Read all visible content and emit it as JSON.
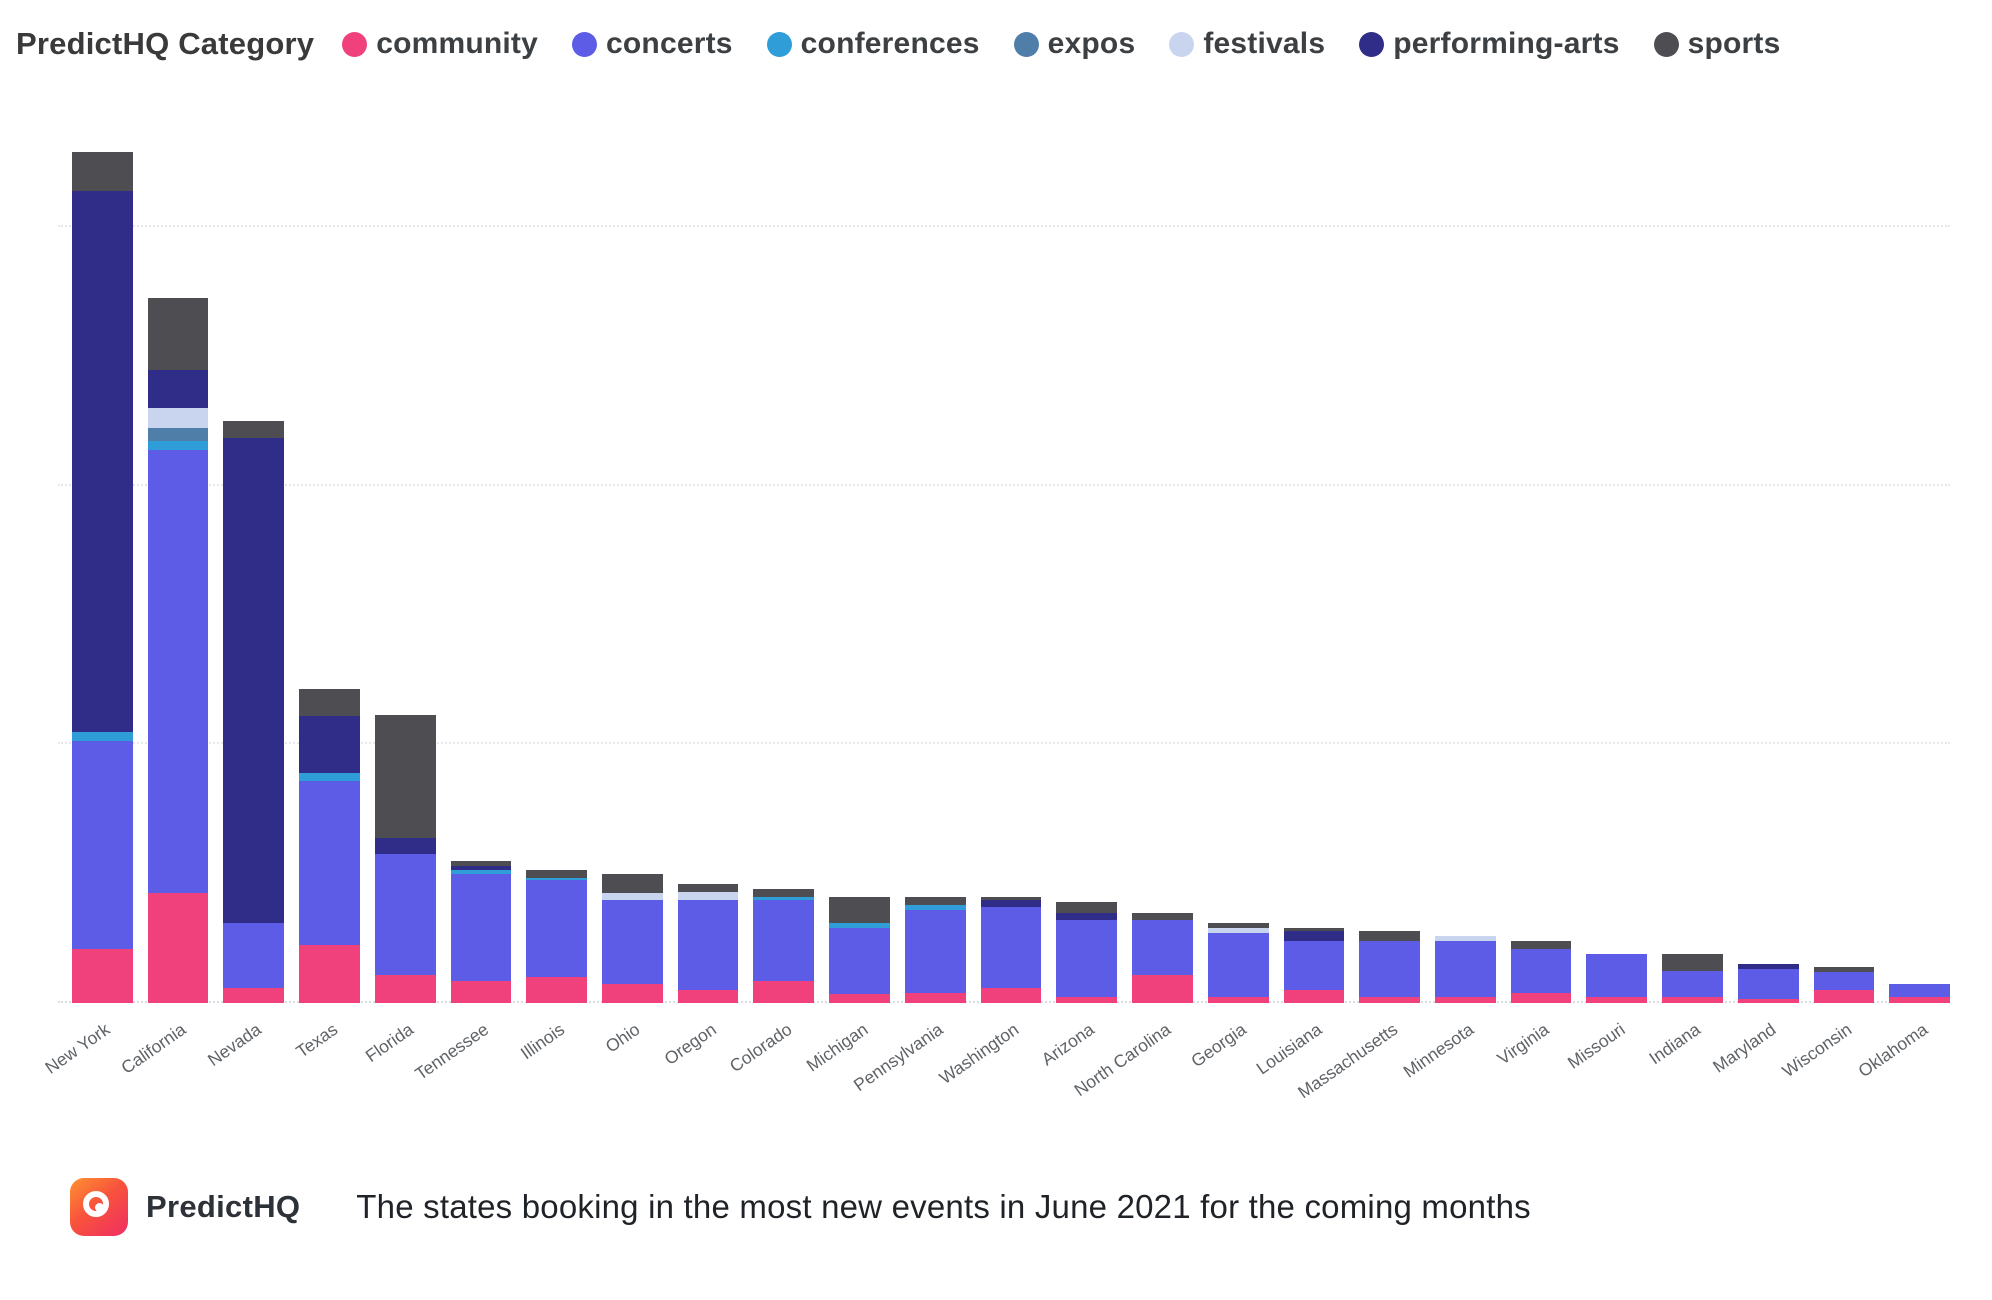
{
  "legend": {
    "title": "PredictHQ Category",
    "items": [
      {
        "label": "community",
        "color": "#F0417D"
      },
      {
        "label": "concerts",
        "color": "#5C5CE6"
      },
      {
        "label": "conferences",
        "color": "#2F9DD8"
      },
      {
        "label": "expos",
        "color": "#4F7EA9"
      },
      {
        "label": "festivals",
        "color": "#C9D5EE"
      },
      {
        "label": "performing-arts",
        "color": "#2F2D87"
      },
      {
        "label": "sports",
        "color": "#4E4E52"
      }
    ]
  },
  "chart_data": {
    "type": "bar",
    "stacked": true,
    "title": "The states booking in the most new events in June 2021 for the coming months",
    "xlabel": "",
    "ylabel": "",
    "ylim": [
      0,
      3500
    ],
    "grid": "horizontal-dotted",
    "gridline_values": [
      1000,
      2000,
      3000
    ],
    "legend_position": "top",
    "categories": [
      "New York",
      "California",
      "Nevada",
      "Texas",
      "Florida",
      "Tennessee",
      "Illinois",
      "Ohio",
      "Oregon",
      "Colorado",
      "Michigan",
      "Pennsylvania",
      "Washington",
      "Arizona",
      "North Carolina",
      "Georgia",
      "Louisiana",
      "Massachusetts",
      "Minnesota",
      "Virginia",
      "Missouri",
      "Indiana",
      "Maryland",
      "Wisconsin",
      "Oklahoma"
    ],
    "series": [
      {
        "name": "community",
        "color": "#F0417D",
        "values": [
          210,
          425,
          60,
          225,
          110,
          85,
          100,
          75,
          50,
          85,
          35,
          40,
          60,
          25,
          110,
          25,
          50,
          25,
          25,
          40,
          25,
          25,
          15,
          50,
          25
        ]
      },
      {
        "name": "concerts",
        "color": "#5C5CE6",
        "values": [
          805,
          1715,
          250,
          635,
          465,
          415,
          375,
          325,
          350,
          315,
          255,
          320,
          310,
          295,
          210,
          245,
          190,
          215,
          215,
          170,
          165,
          100,
          115,
          70,
          50
        ]
      },
      {
        "name": "conferences",
        "color": "#2F9DD8",
        "values": [
          35,
          35,
          0,
          30,
          0,
          15,
          10,
          0,
          0,
          10,
          20,
          20,
          0,
          0,
          0,
          0,
          0,
          0,
          0,
          0,
          0,
          0,
          0,
          0,
          0
        ]
      },
      {
        "name": "expos",
        "color": "#4F7EA9",
        "values": [
          0,
          50,
          0,
          0,
          0,
          0,
          0,
          0,
          0,
          0,
          0,
          0,
          0,
          0,
          0,
          0,
          0,
          0,
          0,
          0,
          0,
          0,
          0,
          0,
          0
        ]
      },
      {
        "name": "festivals",
        "color": "#C9D5EE",
        "values": [
          0,
          75,
          0,
          0,
          0,
          0,
          0,
          25,
          30,
          0,
          0,
          0,
          0,
          0,
          0,
          20,
          0,
          0,
          20,
          0,
          0,
          0,
          0,
          0,
          0
        ]
      },
      {
        "name": "performing-arts",
        "color": "#2F2D87",
        "values": [
          2090,
          150,
          1875,
          220,
          65,
          15,
          0,
          0,
          0,
          0,
          0,
          0,
          30,
          30,
          0,
          0,
          40,
          0,
          0,
          0,
          0,
          0,
          20,
          0,
          0
        ]
      },
      {
        "name": "sports",
        "color": "#4E4E52",
        "values": [
          150,
          275,
          65,
          105,
          475,
          20,
          30,
          75,
          30,
          30,
          100,
          30,
          10,
          40,
          30,
          20,
          10,
          40,
          0,
          30,
          0,
          65,
          0,
          20,
          0
        ]
      }
    ]
  },
  "footer": {
    "brand": "PredictHQ",
    "title": "The states booking in the most new events in June 2021 for the coming months"
  }
}
